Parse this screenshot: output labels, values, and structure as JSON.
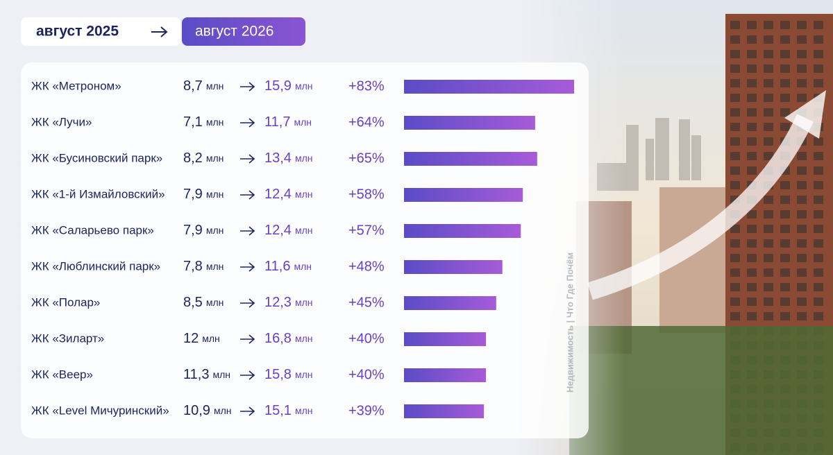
{
  "chart_data": {
    "type": "bar",
    "period_from": "август 2025",
    "period_to": "август 2026",
    "unit": "млн",
    "categories": [
      "ЖК «Метроном»",
      "ЖК «Лучи»",
      "ЖК «Бусиновский парк»",
      "ЖК «1-й Измайловский»",
      "ЖК «Саларьево парк»",
      "ЖК «Люблинский парк»",
      "ЖК «Полар»",
      "ЖК «Зиларт»",
      "ЖК «Веер»",
      "ЖК «Level Мичуринский»"
    ],
    "price_from": [
      "8,7",
      "7,1",
      "8,2",
      "7,9",
      "7,9",
      "7,8",
      "8,5",
      "12",
      "11,3",
      "10,9"
    ],
    "price_to": [
      "15,9",
      "11,7",
      "13,4",
      "12,4",
      "12,4",
      "11,6",
      "12,3",
      "16,8",
      "15,8",
      "15,1"
    ],
    "values": [
      83,
      64,
      65,
      58,
      57,
      48,
      45,
      40,
      40,
      39
    ],
    "value_labels": [
      "+83%",
      "+64%",
      "+65%",
      "+58%",
      "+57%",
      "+48%",
      "+45%",
      "+40%",
      "+40%",
      "+39%"
    ],
    "color_from": "#5a4cc6",
    "color_to": "#a75bd8",
    "watermark": "Недвижимость | Что Где Почём"
  }
}
